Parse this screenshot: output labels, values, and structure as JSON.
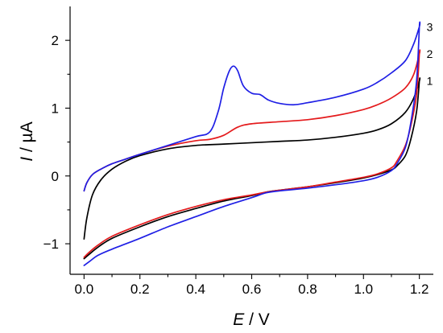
{
  "chart_data": {
    "type": "line",
    "x_axis": {
      "label_symbol": "E",
      "label_unit": " / V",
      "lim": [
        -0.05,
        1.25
      ],
      "ticks": [
        0.0,
        0.2,
        0.4,
        0.6,
        0.8,
        1.0,
        1.2
      ],
      "tick_labels": [
        "0.0",
        "0.2",
        "0.4",
        "0.6",
        "0.8",
        "1.0",
        "1.2"
      ]
    },
    "y_axis": {
      "label_symbol": "I",
      "label_unit": " / µA",
      "lim": [
        -1.45,
        2.5
      ],
      "ticks": [
        -1,
        0,
        1,
        2
      ],
      "tick_labels": [
        "−1",
        "0",
        "1",
        "2"
      ]
    },
    "grid": false,
    "series": [
      {
        "name": "1",
        "color": "#000000",
        "x": [
          0.0,
          0.01,
          0.03,
          0.06,
          0.1,
          0.15,
          0.2,
          0.3,
          0.4,
          0.5,
          0.6,
          0.7,
          0.8,
          0.9,
          1.0,
          1.05,
          1.1,
          1.15,
          1.18,
          1.2,
          1.2,
          1.19,
          1.17,
          1.15,
          1.12,
          1.1,
          1.05,
          1.0,
          0.9,
          0.8,
          0.7,
          0.65,
          0.6,
          0.5,
          0.4,
          0.3,
          0.2,
          0.1,
          0.05,
          0.02,
          0.0
        ],
        "y": [
          -0.93,
          -0.62,
          -0.28,
          -0.06,
          0.1,
          0.22,
          0.3,
          0.4,
          0.45,
          0.47,
          0.49,
          0.51,
          0.53,
          0.57,
          0.63,
          0.68,
          0.77,
          0.94,
          1.15,
          1.4,
          1.4,
          0.95,
          0.55,
          0.3,
          0.15,
          0.09,
          0.02,
          -0.03,
          -0.1,
          -0.16,
          -0.21,
          -0.24,
          -0.29,
          -0.37,
          -0.48,
          -0.6,
          -0.75,
          -0.92,
          -1.05,
          -1.15,
          -1.22
        ]
      },
      {
        "name": "2",
        "color": "#e41a1c",
        "x": [
          0.0,
          0.01,
          0.03,
          0.06,
          0.1,
          0.15,
          0.2,
          0.3,
          0.4,
          0.45,
          0.5,
          0.55,
          0.6,
          0.7,
          0.8,
          0.9,
          1.0,
          1.05,
          1.1,
          1.15,
          1.18,
          1.2,
          1.2,
          1.19,
          1.17,
          1.15,
          1.12,
          1.1,
          1.05,
          1.0,
          0.9,
          0.8,
          0.7,
          0.65,
          0.6,
          0.5,
          0.4,
          0.3,
          0.2,
          0.1,
          0.05,
          0.02,
          0.0
        ],
        "y": [
          -0.22,
          -0.1,
          0.02,
          0.1,
          0.18,
          0.25,
          0.32,
          0.44,
          0.52,
          0.54,
          0.6,
          0.72,
          0.77,
          0.8,
          0.83,
          0.89,
          0.98,
          1.05,
          1.15,
          1.3,
          1.5,
          1.8,
          1.8,
          1.2,
          0.75,
          0.45,
          0.22,
          0.12,
          0.03,
          -0.02,
          -0.09,
          -0.16,
          -0.21,
          -0.24,
          -0.28,
          -0.35,
          -0.45,
          -0.57,
          -0.72,
          -0.89,
          -1.02,
          -1.12,
          -1.2
        ]
      },
      {
        "name": "3",
        "color": "#1f1fe5",
        "x": [
          0.0,
          0.01,
          0.03,
          0.06,
          0.1,
          0.15,
          0.2,
          0.3,
          0.4,
          0.45,
          0.48,
          0.5,
          0.52,
          0.535,
          0.55,
          0.57,
          0.6,
          0.63,
          0.66,
          0.7,
          0.75,
          0.8,
          0.9,
          1.0,
          1.05,
          1.1,
          1.15,
          1.18,
          1.2,
          1.2,
          1.19,
          1.17,
          1.15,
          1.12,
          1.1,
          1.05,
          1.0,
          0.9,
          0.8,
          0.7,
          0.65,
          0.6,
          0.5,
          0.4,
          0.3,
          0.2,
          0.1,
          0.05,
          0.02,
          0.0
        ],
        "y": [
          -0.22,
          -0.1,
          0.02,
          0.1,
          0.18,
          0.25,
          0.32,
          0.45,
          0.58,
          0.65,
          0.95,
          1.3,
          1.55,
          1.62,
          1.55,
          1.33,
          1.22,
          1.2,
          1.12,
          1.07,
          1.05,
          1.08,
          1.16,
          1.28,
          1.38,
          1.52,
          1.7,
          1.95,
          2.2,
          2.2,
          1.4,
          0.8,
          0.42,
          0.18,
          0.08,
          -0.02,
          -0.07,
          -0.13,
          -0.18,
          -0.22,
          -0.25,
          -0.32,
          -0.45,
          -0.6,
          -0.75,
          -0.92,
          -1.08,
          -1.17,
          -1.26,
          -1.32
        ]
      }
    ]
  }
}
